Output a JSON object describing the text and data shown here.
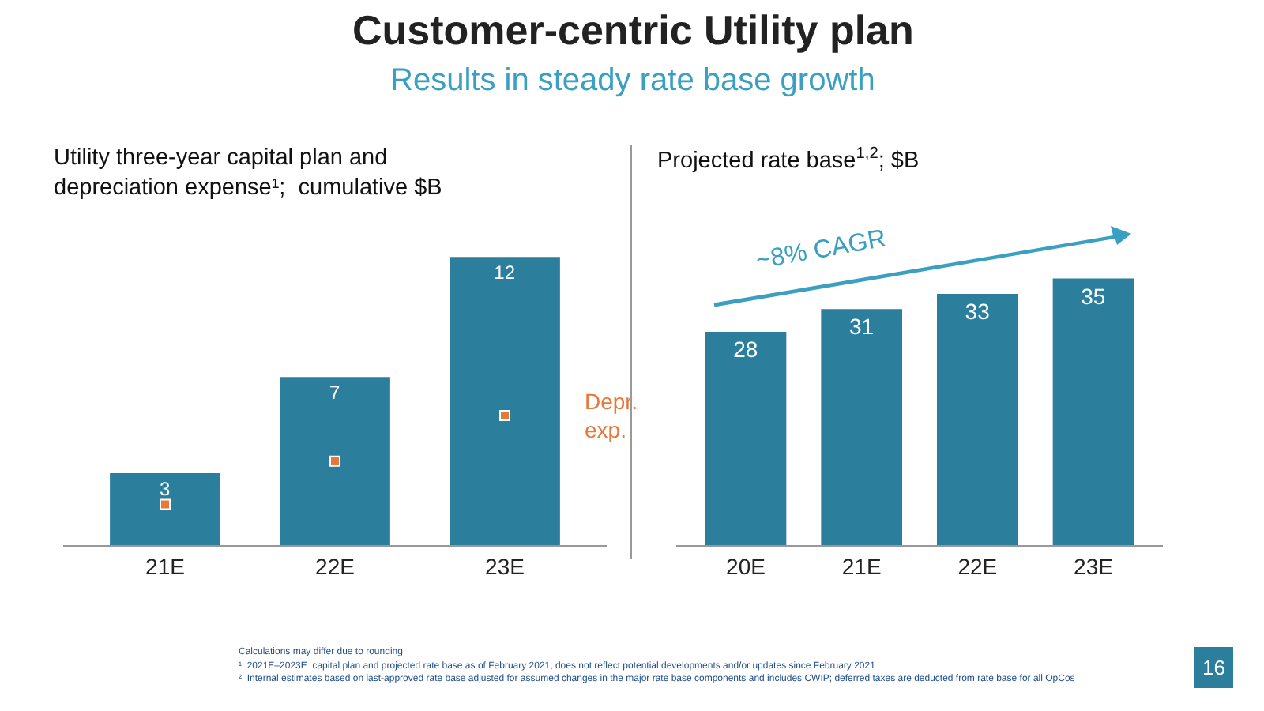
{
  "chart_data": [
    {
      "type": "bar",
      "title": "Utility three-year capital plan and depreciation expense¹;  cumulative $B",
      "categories": [
        "21E",
        "22E",
        "23E"
      ],
      "tick_labels": "x",
      "series": [
        {
          "type": "bar",
          "color": "#2b7f9c",
          "values": [
            3,
            7,
            12
          ],
          "value_labels": [
            "3",
            "7",
            "12"
          ]
        },
        {
          "type": "scatter",
          "name": "Depr. exp.",
          "color": "#e8773a",
          "marker": "square",
          "values": [
            1.7,
            3.5,
            5.4
          ]
        }
      ],
      "annotations": [
        "Customer-centric Utility plan",
        "Results in steady rate base growth",
        "Calculations may differ due to rounding",
        "¹  2021E–2023E  capital plan and projected rate base as of February 2021; does not reflect potential developments and/or updates since February 2021",
        "²  Internal estimates based on last-approved rate base adjusted for assumed changes in the major rate base components and includes CWIP; deferred taxes are deducted from rate base for all OpCos"
      ]
    },
    {
      "type": "bar",
      "title": "Projected rate base$^{1,2}$; $B",
      "categories": [
        "20E",
        "21E",
        "22E",
        "23E"
      ],
      "tick_labels": "x",
      "data_labels": true,
      "color": "#2b7f9c",
      "values": [
        28,
        31,
        33,
        35
      ],
      "annotations": [
        "~8% CAGR",
        "16"
      ]
    }
  ]
}
